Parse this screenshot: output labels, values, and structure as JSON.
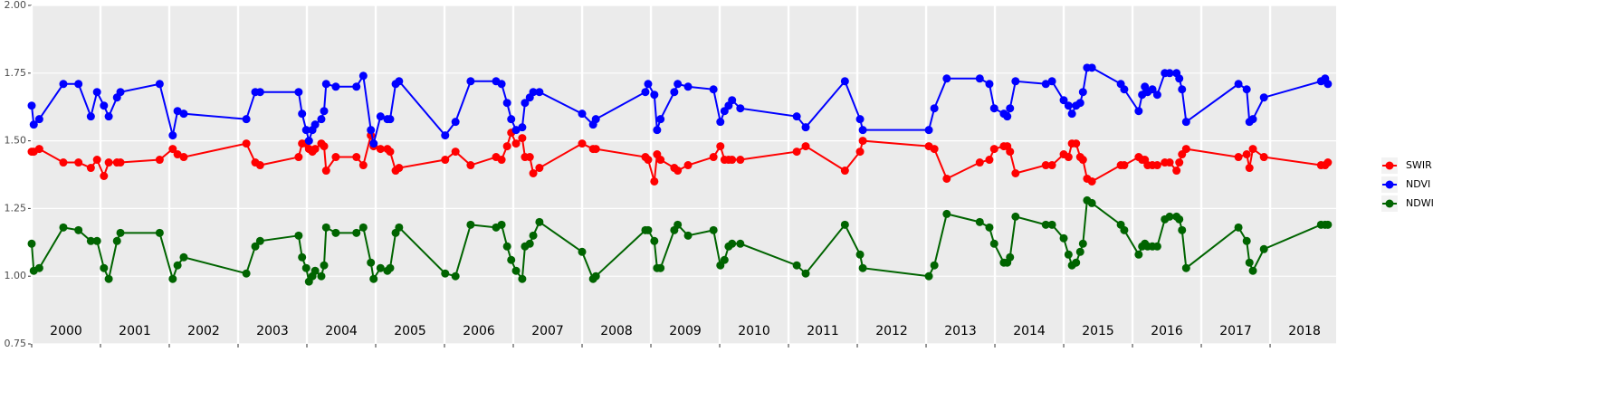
{
  "chart_data": {
    "type": "line",
    "x": [
      2000.0,
      2000.03,
      2000.11,
      2000.46,
      2000.68,
      2000.86,
      2000.95,
      2001.05,
      2001.12,
      2001.24,
      2001.29,
      2001.86,
      2002.05,
      2002.12,
      2002.21,
      2003.12,
      2003.25,
      2003.32,
      2003.88,
      2003.93,
      2003.99,
      2004.03,
      2004.08,
      2004.12,
      2004.21,
      2004.25,
      2004.28,
      2004.42,
      2004.72,
      2004.82,
      2004.93,
      2004.97,
      2005.07,
      2005.17,
      2005.21,
      2005.29,
      2005.34,
      2006.01,
      2006.16,
      2006.38,
      2006.75,
      2006.83,
      2006.91,
      2006.97,
      2007.04,
      2007.13,
      2007.17,
      2007.24,
      2007.29,
      2007.38,
      2008.0,
      2008.16,
      2008.2,
      2008.92,
      2008.96,
      2009.05,
      2009.09,
      2009.14,
      2009.34,
      2009.39,
      2009.54,
      2009.91,
      2010.01,
      2010.07,
      2010.13,
      2010.18,
      2010.3,
      2011.12,
      2011.25,
      2011.82,
      2012.04,
      2012.08,
      2013.04,
      2013.12,
      2013.3,
      2013.78,
      2013.92,
      2013.99,
      2014.13,
      2014.18,
      2014.22,
      2014.3,
      2014.74,
      2014.83,
      2015.0,
      2015.07,
      2015.12,
      2015.18,
      2015.24,
      2015.28,
      2015.34,
      2015.41,
      2015.83,
      2015.88,
      2016.09,
      2016.14,
      2016.18,
      2016.22,
      2016.29,
      2016.36,
      2016.47,
      2016.54,
      2016.64,
      2016.68,
      2016.72,
      2016.78,
      2017.54,
      2017.66,
      2017.7,
      2017.75,
      2017.91,
      2018.74,
      2018.8,
      2018.84
    ],
    "series": [
      {
        "name": "SWIR",
        "color": "#ff0000",
        "values": [
          1.46,
          1.46,
          1.47,
          1.42,
          1.42,
          1.4,
          1.43,
          1.37,
          1.42,
          1.42,
          1.42,
          1.43,
          1.47,
          1.45,
          1.44,
          1.49,
          1.42,
          1.41,
          1.44,
          1.49,
          1.49,
          1.47,
          1.46,
          1.47,
          1.49,
          1.48,
          1.39,
          1.44,
          1.44,
          1.41,
          1.52,
          1.48,
          1.47,
          1.47,
          1.46,
          1.39,
          1.4,
          1.43,
          1.46,
          1.41,
          1.44,
          1.43,
          1.48,
          1.53,
          1.49,
          1.51,
          1.44,
          1.44,
          1.38,
          1.4,
          1.49,
          1.47,
          1.47,
          1.44,
          1.43,
          1.35,
          1.45,
          1.43,
          1.4,
          1.39,
          1.41,
          1.44,
          1.48,
          1.43,
          1.43,
          1.43,
          1.43,
          1.46,
          1.48,
          1.39,
          1.46,
          1.5,
          1.48,
          1.47,
          1.36,
          1.42,
          1.43,
          1.47,
          1.48,
          1.48,
          1.46,
          1.38,
          1.41,
          1.41,
          1.45,
          1.44,
          1.49,
          1.49,
          1.44,
          1.43,
          1.36,
          1.35,
          1.41,
          1.41,
          1.44,
          1.43,
          1.43,
          1.41,
          1.41,
          1.41,
          1.42,
          1.42,
          1.39,
          1.42,
          1.45,
          1.47,
          1.44,
          1.45,
          1.4,
          1.47,
          1.44,
          1.41,
          1.41,
          1.42
        ]
      },
      {
        "name": "NDVI",
        "color": "#0000ff",
        "values": [
          1.63,
          1.56,
          1.58,
          1.71,
          1.71,
          1.59,
          1.68,
          1.63,
          1.59,
          1.66,
          1.68,
          1.71,
          1.52,
          1.61,
          1.6,
          1.58,
          1.68,
          1.68,
          1.68,
          1.6,
          1.54,
          1.5,
          1.54,
          1.56,
          1.58,
          1.61,
          1.71,
          1.7,
          1.7,
          1.74,
          1.54,
          1.49,
          1.59,
          1.58,
          1.58,
          1.71,
          1.72,
          1.52,
          1.57,
          1.72,
          1.72,
          1.71,
          1.64,
          1.58,
          1.54,
          1.55,
          1.64,
          1.66,
          1.68,
          1.68,
          1.6,
          1.56,
          1.58,
          1.68,
          1.71,
          1.67,
          1.54,
          1.58,
          1.68,
          1.71,
          1.7,
          1.69,
          1.57,
          1.61,
          1.63,
          1.65,
          1.62,
          1.59,
          1.55,
          1.72,
          1.58,
          1.54,
          1.54,
          1.62,
          1.73,
          1.73,
          1.71,
          1.62,
          1.6,
          1.59,
          1.62,
          1.72,
          1.71,
          1.72,
          1.65,
          1.63,
          1.6,
          1.63,
          1.64,
          1.68,
          1.77,
          1.77,
          1.71,
          1.69,
          1.61,
          1.67,
          1.7,
          1.68,
          1.69,
          1.67,
          1.75,
          1.75,
          1.75,
          1.73,
          1.69,
          1.57,
          1.71,
          1.69,
          1.57,
          1.58,
          1.66,
          1.72,
          1.73,
          1.71
        ]
      },
      {
        "name": "NDWI",
        "color": "#006400",
        "values": [
          1.12,
          1.02,
          1.03,
          1.18,
          1.17,
          1.13,
          1.13,
          1.03,
          0.99,
          1.13,
          1.16,
          1.16,
          0.99,
          1.04,
          1.07,
          1.01,
          1.11,
          1.13,
          1.15,
          1.07,
          1.03,
          0.98,
          1.0,
          1.02,
          1.0,
          1.04,
          1.18,
          1.16,
          1.16,
          1.18,
          1.05,
          0.99,
          1.03,
          1.02,
          1.03,
          1.16,
          1.18,
          1.01,
          1.0,
          1.19,
          1.18,
          1.19,
          1.11,
          1.06,
          1.02,
          0.99,
          1.11,
          1.12,
          1.15,
          1.2,
          1.09,
          0.99,
          1.0,
          1.17,
          1.17,
          1.13,
          1.03,
          1.03,
          1.17,
          1.19,
          1.15,
          1.17,
          1.04,
          1.06,
          1.11,
          1.12,
          1.12,
          1.04,
          1.01,
          1.19,
          1.08,
          1.03,
          1.0,
          1.04,
          1.23,
          1.2,
          1.18,
          1.12,
          1.05,
          1.05,
          1.07,
          1.22,
          1.19,
          1.19,
          1.14,
          1.08,
          1.04,
          1.05,
          1.09,
          1.12,
          1.28,
          1.27,
          1.19,
          1.17,
          1.08,
          1.11,
          1.12,
          1.11,
          1.11,
          1.11,
          1.21,
          1.22,
          1.22,
          1.21,
          1.17,
          1.03,
          1.18,
          1.13,
          1.05,
          1.02,
          1.1,
          1.19,
          1.19,
          1.19
        ]
      }
    ],
    "xlim": [
      2000,
      2018.96
    ],
    "xticks": [
      2000,
      2001,
      2002,
      2003,
      2004,
      2005,
      2006,
      2007,
      2008,
      2009,
      2010,
      2011,
      2012,
      2013,
      2014,
      2015,
      2016,
      2017,
      2018
    ],
    "ylim": [
      0.75,
      2.0
    ],
    "yticks": [
      {
        "value": 0.75,
        "label": "0.75"
      },
      {
        "value": 1.0,
        "label": "1.00"
      },
      {
        "value": 1.25,
        "label": "1.25"
      },
      {
        "value": 1.5,
        "label": "1.50"
      },
      {
        "value": 1.75,
        "label": "1.75"
      },
      {
        "value": 2.0,
        "label": "2.00"
      }
    ],
    "grid": true,
    "legend": "right"
  }
}
